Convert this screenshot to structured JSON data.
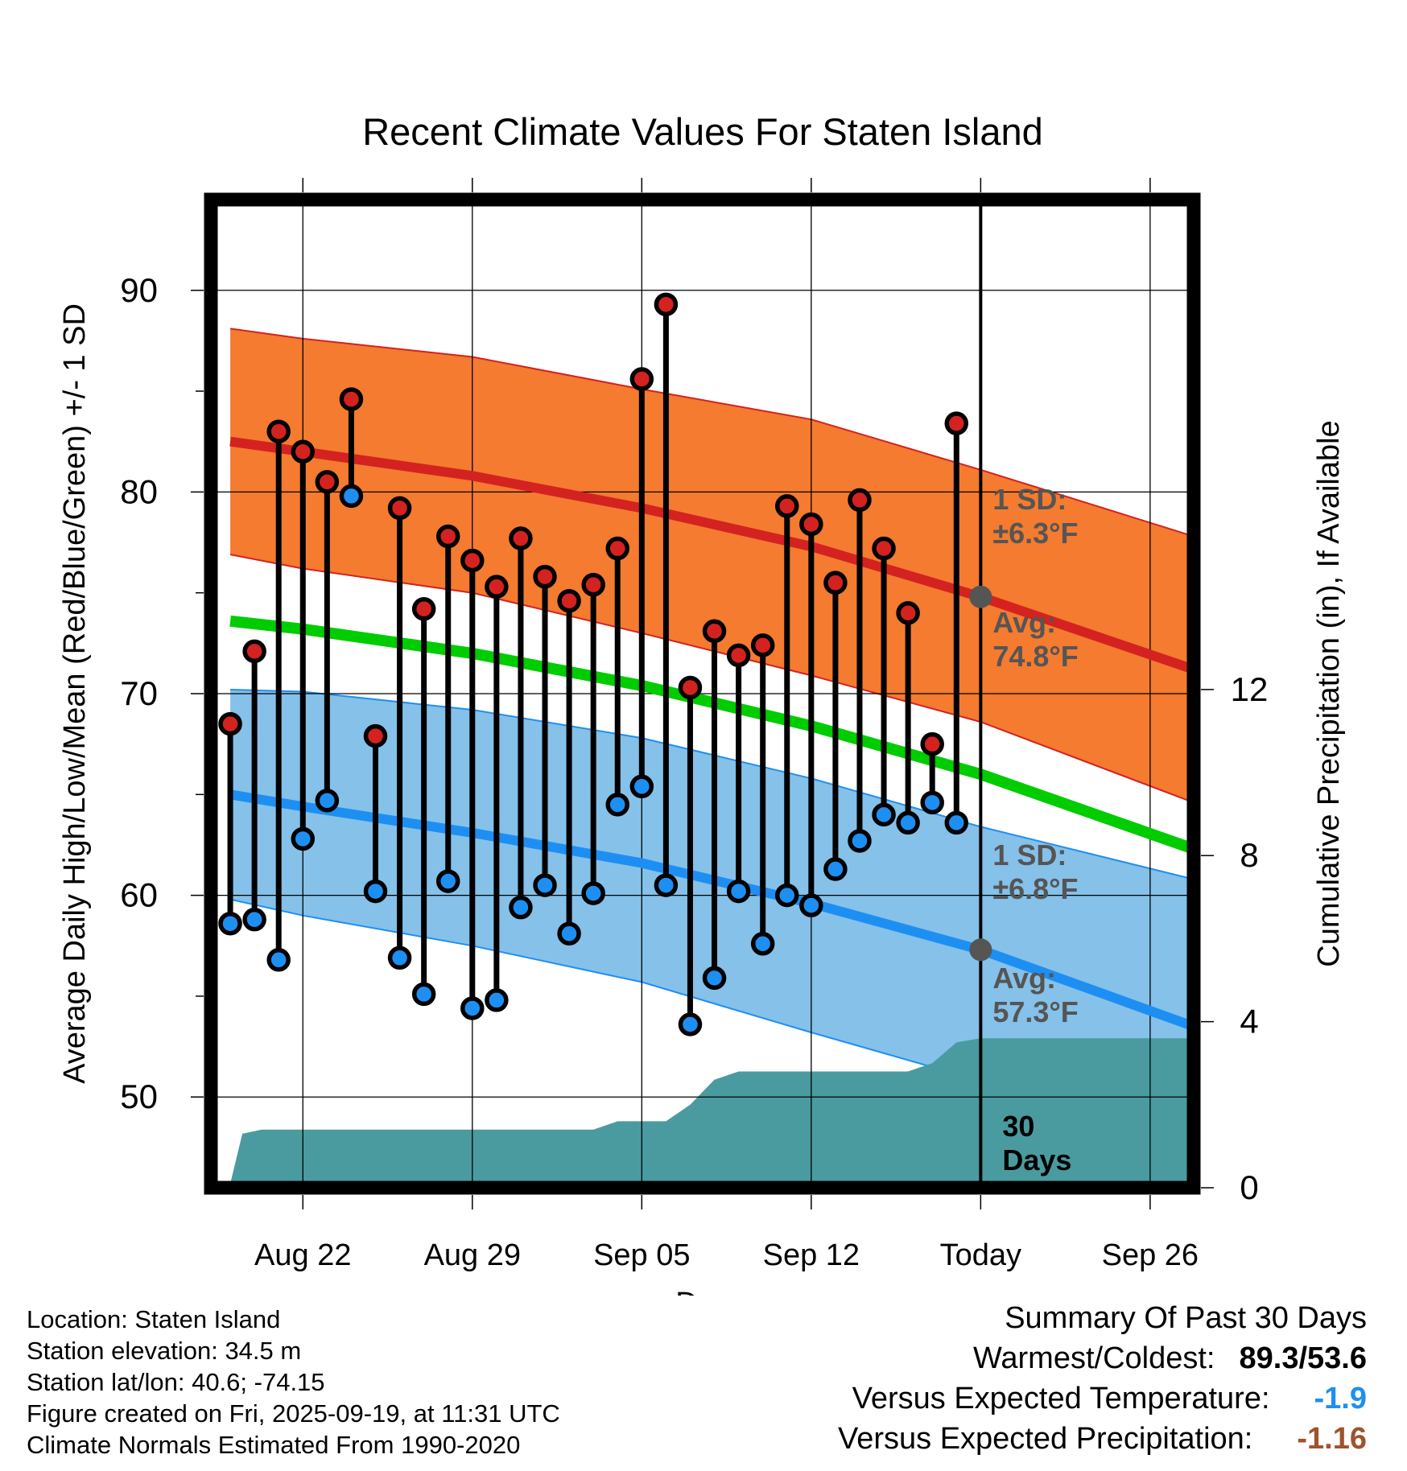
{
  "chart_data": {
    "type": "line",
    "title": "Recent Climate Values For Staten Island",
    "xlabel": "Day",
    "ylabel": "Average Daily High/Low/Mean (Red/Blue/Green) +/- 1 SD",
    "y2label": "Cumulative Precipitation (in), If Available",
    "ylim": [
      45.5,
      94.5
    ],
    "y2lim": [
      0,
      23.8
    ],
    "yticks": [
      50,
      60,
      70,
      80,
      90
    ],
    "y2ticks": [
      0,
      4,
      8,
      12
    ],
    "xlim": [
      -1.8,
      38.8
    ],
    "xticks": [
      {
        "day": 2,
        "label": "Aug 22"
      },
      {
        "day": 9,
        "label": "Aug 29"
      },
      {
        "day": 16,
        "label": "Sep 05"
      },
      {
        "day": 23,
        "label": "Sep 12"
      },
      {
        "day": 30,
        "label": "Today"
      },
      {
        "day": 37,
        "label": "Sep 26"
      }
    ],
    "today_day": 30,
    "days": [
      -1,
      0,
      1,
      2,
      3,
      4,
      5,
      6,
      7,
      8,
      9,
      10,
      11,
      12,
      13,
      14,
      15,
      16,
      17,
      18,
      19,
      20,
      21,
      22,
      23,
      24,
      25,
      26,
      27,
      28,
      29
    ],
    "highs": [
      68.5,
      72.1,
      83.0,
      82.0,
      80.5,
      84.6,
      67.9,
      79.2,
      74.2,
      77.8,
      76.6,
      75.3,
      77.7,
      75.8,
      74.6,
      75.4,
      77.2,
      85.6,
      89.3,
      70.3,
      73.1,
      71.9,
      72.4,
      79.3,
      78.4,
      75.5,
      79.6,
      77.2,
      74.0,
      67.5,
      83.4
    ],
    "lows": [
      58.6,
      58.8,
      56.8,
      62.8,
      64.7,
      79.8,
      60.2,
      56.9,
      55.1,
      60.7,
      54.4,
      54.8,
      59.4,
      60.5,
      58.1,
      60.1,
      64.5,
      65.4,
      60.5,
      53.6,
      55.9,
      60.2,
      57.6,
      60.0,
      59.5,
      61.3,
      62.7,
      64.0,
      63.6,
      64.6,
      63.6
    ],
    "normal_high": {
      "days": [
        -1,
        2,
        9,
        16,
        23,
        30,
        38.8
      ],
      "avg": [
        82.5,
        82.0,
        80.8,
        79.2,
        77.3,
        74.8,
        71.2
      ],
      "sd": 6.3,
      "upper": [
        88.1,
        87.6,
        86.7,
        85.1,
        83.6,
        81.1,
        77.8
      ],
      "lower": [
        76.9,
        76.2,
        75.0,
        73.0,
        70.9,
        68.6,
        64.6
      ]
    },
    "normal_low": {
      "days": [
        -1,
        2,
        9,
        16,
        23,
        30,
        38.8
      ],
      "avg": [
        65.0,
        64.4,
        63.1,
        61.6,
        59.6,
        57.3,
        53.5
      ],
      "sd": 6.8,
      "upper": [
        70.2,
        70.1,
        69.2,
        67.8,
        65.8,
        63.4,
        60.8
      ],
      "lower": [
        59.8,
        59.0,
        57.5,
        55.7,
        53.2,
        50.8,
        46.5
      ]
    },
    "normal_mean": {
      "days": [
        -1,
        2,
        9,
        16,
        23,
        30,
        38.8
      ],
      "values": [
        73.6,
        73.2,
        72.0,
        70.4,
        68.4,
        66.0,
        62.3
      ]
    },
    "precip": {
      "days": [
        -1,
        -0.5,
        0.3,
        1,
        3,
        5,
        10,
        14,
        15,
        16,
        17,
        18,
        19,
        20,
        21,
        22,
        23,
        24,
        25,
        26,
        27,
        28,
        29,
        30,
        38.8
      ],
      "values": [
        0.1,
        1.3,
        1.4,
        1.4,
        1.4,
        1.4,
        1.4,
        1.4,
        1.6,
        1.6,
        1.6,
        2.0,
        2.6,
        2.8,
        2.8,
        2.8,
        2.8,
        2.8,
        2.8,
        2.8,
        2.8,
        3.0,
        3.5,
        3.6,
        3.6
      ]
    },
    "annotations": {
      "high_sd": [
        "1 SD:",
        "±6.3°F"
      ],
      "high_avg": [
        "Avg:",
        "74.8°F"
      ],
      "low_sd": [
        "1 SD:",
        "±6.8°F"
      ],
      "low_avg": [
        "Avg:",
        "57.3°F"
      ],
      "precip_period": [
        "30",
        "Days"
      ]
    }
  },
  "colors": {
    "high_band": "#f47b2f",
    "high_line": "#d42221",
    "low_band": "#85c1e9",
    "low_line": "#1e8ff2",
    "mean_line": "#00cc00",
    "precip_fill": "#4a9ba0",
    "high_point": "#d42221",
    "low_point": "#1e8ff2",
    "annotation_text": "#555555"
  },
  "info": {
    "location": "Location: Staten Island",
    "elevation": "Station elevation: 34.5 m",
    "latlon": "Station lat/lon: 40.6; -74.15",
    "created": "Figure created on Fri, 2025-09-19, at 11:31 UTC",
    "normals": "Climate Normals Estimated From 1990-2020"
  },
  "summary": {
    "title": "Summary Of Past 30 Days",
    "warm_cold_label": "Warmest/Coldest:",
    "warmest": "89.3",
    "sep": "/",
    "coldest": "53.6",
    "temp_label": "Versus Expected Temperature:",
    "temp_value": "-1.9",
    "precip_label": "Versus Expected Precipitation:",
    "precip_value": "-1.16"
  }
}
